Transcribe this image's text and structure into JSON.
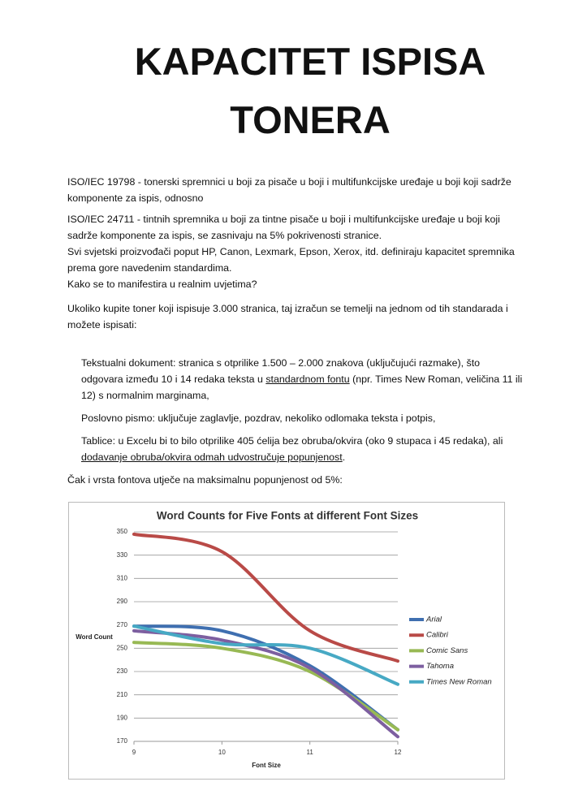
{
  "document": {
    "title": "KAPACITET ISPISA TONERA",
    "paragraphs": [
      "ISO/IEC 19798 - tonerski spremnici u boji za pisače u boji i multifunkcijske uređaje u boji koji sadrže komponente za ispis, odnosno",
      "ISO/IEC 24711 - tintnih spremnika u boji za tintne pisače u boji i multifunkcijske uređaje u boji koji sadrže komponente za ispis, se zasnivaju na 5% pokrivenosti stranice.",
      "Svi svjetski proizvođači poput HP, Canon, Lexmark, Epson, Xerox, itd. definiraju kapacitet spremnika prema gore navedenim standardima.",
      "Kako se to manifestira u realnim uvjetima?",
      "Ukoliko kupite toner koji ispisuje 3.000 stranica, taj izračun se temelji na jednom od tih standarada i možete ispisati:"
    ],
    "items": [
      [
        "Tekstualni dokument: stranica s otprilike 1.500 – 2.000 znakova (uključujući razmake), što odgovara između 10 i 14 redaka teksta u ",
        "standardnom fontu",
        " (npr. Times New Roman, veličina 11 ili 12) s normalnim marginama,"
      ],
      [
        "Poslovno pismo: uključuje zaglavlje, pozdrav, nekoliko odlomaka teksta i potpis,"
      ],
      [
        "Tablice: u Excelu bi to bilo otprilike 405 ćelija bez obruba/okvira (oko 9 stupaca i 45 redaka), ali ",
        "dodavanje obruba/okvira odmah udvostručuje popunjenost",
        "."
      ]
    ],
    "closing": "Čak i vrsta fontova utječe na maksimalnu popunjenost od 5%:"
  },
  "chart_data": {
    "type": "line",
    "title": "Word Counts for Five Fonts at different Font Sizes",
    "x_label": "Font Size",
    "y_label": "Word Count",
    "x": [
      9,
      10,
      11,
      12
    ],
    "xlim": [
      9,
      12
    ],
    "xticks": [
      9,
      10,
      11,
      12
    ],
    "ylim": [
      170,
      350
    ],
    "yticks": [
      170,
      190,
      210,
      230,
      250,
      270,
      290,
      310,
      330,
      350
    ],
    "grid": true,
    "legend": "right",
    "series": [
      {
        "name": "Arial",
        "color": "#3f6fb0",
        "values": [
          269,
          265,
          235,
          180
        ]
      },
      {
        "name": "Calibri",
        "color": "#b94a47",
        "values": [
          348,
          333,
          265,
          239
        ]
      },
      {
        "name": "Comic Sans",
        "color": "#98b954",
        "values": [
          255,
          250,
          230,
          180
        ]
      },
      {
        "name": "Tahoma",
        "color": "#7d5fa0",
        "values": [
          265,
          257,
          233,
          174
        ]
      },
      {
        "name": "Times New Roman",
        "color": "#47a9c4",
        "values": [
          269,
          254,
          250,
          219
        ]
      }
    ]
  }
}
